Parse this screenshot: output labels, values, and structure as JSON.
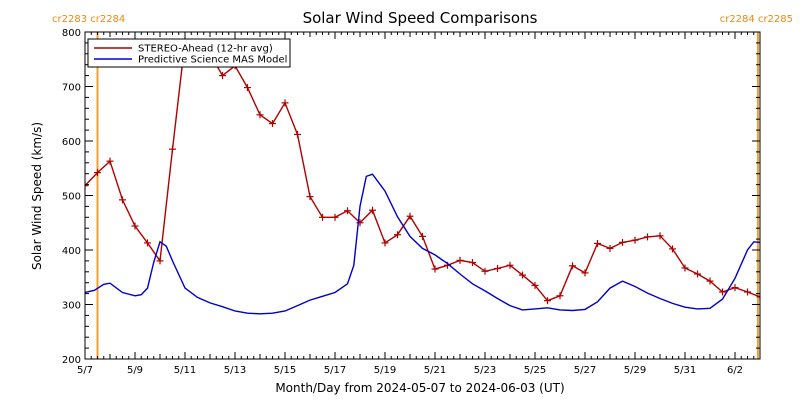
{
  "chart_data": {
    "type": "line",
    "title": "Solar Wind Speed Comparisons",
    "xlabel": "Month/Day from 2024-05-07 to 2024-06-03 (UT)",
    "ylabel": "Solar Wind Speed (km/s)",
    "xlim": [
      "2024-05-07",
      "2024-06-03"
    ],
    "ylim": [
      200,
      800
    ],
    "y_ticks": [
      200,
      300,
      400,
      500,
      600,
      700,
      800
    ],
    "x_ticks": [
      {
        "date": "2024-05-07",
        "label": "5/7"
      },
      {
        "date": "2024-05-09",
        "label": "5/9"
      },
      {
        "date": "2024-05-11",
        "label": "5/11"
      },
      {
        "date": "2024-05-13",
        "label": "5/13"
      },
      {
        "date": "2024-05-15",
        "label": "5/15"
      },
      {
        "date": "2024-05-17",
        "label": "5/17"
      },
      {
        "date": "2024-05-19",
        "label": "5/19"
      },
      {
        "date": "2024-05-21",
        "label": "5/21"
      },
      {
        "date": "2024-05-23",
        "label": "5/23"
      },
      {
        "date": "2024-05-25",
        "label": "5/25"
      },
      {
        "date": "2024-05-27",
        "label": "5/27"
      },
      {
        "date": "2024-05-29",
        "label": "5/29"
      },
      {
        "date": "2024-05-31",
        "label": "5/31"
      },
      {
        "date": "2024-06-02",
        "label": "6/2"
      }
    ],
    "carrington_left": "cr2283 cr2284",
    "carrington_right": "cr2284 cr2285",
    "carrington_markers": [
      "2024-05-07 12:00",
      "2024-06-02 22:00"
    ],
    "legend_position": "top-left",
    "grid": false,
    "series": [
      {
        "name": "STEREO-Ahead (12-hr avg)",
        "color": "#b00000",
        "marker": "plus",
        "points": [
          [
            "2024-05-07 00:00",
            518
          ],
          [
            "2024-05-07 12:00",
            542
          ],
          [
            "2024-05-08 00:00",
            563
          ],
          [
            "2024-05-08 12:00",
            492
          ],
          [
            "2024-05-09 00:00",
            444
          ],
          [
            "2024-05-09 12:00",
            413
          ],
          [
            "2024-05-10 00:00",
            380
          ],
          [
            "2024-05-10 12:00",
            585
          ],
          [
            "2024-05-11 00:00",
            782
          ],
          [
            "2024-05-11 12:00",
            765
          ],
          [
            "2024-05-12 00:00",
            760
          ],
          [
            "2024-05-12 12:00",
            720
          ],
          [
            "2024-05-13 00:00",
            738
          ],
          [
            "2024-05-13 12:00",
            698
          ],
          [
            "2024-05-14 00:00",
            648
          ],
          [
            "2024-05-14 12:00",
            632
          ],
          [
            "2024-05-15 00:00",
            670
          ],
          [
            "2024-05-15 12:00",
            612
          ],
          [
            "2024-05-16 00:00",
            498
          ],
          [
            "2024-05-16 12:00",
            460
          ],
          [
            "2024-05-17 00:00",
            460
          ],
          [
            "2024-05-17 12:00",
            472
          ],
          [
            "2024-05-18 00:00",
            450
          ],
          [
            "2024-05-18 12:00",
            473
          ],
          [
            "2024-05-19 00:00",
            413
          ],
          [
            "2024-05-19 12:00",
            428
          ],
          [
            "2024-05-20 00:00",
            462
          ],
          [
            "2024-05-20 12:00",
            425
          ],
          [
            "2024-05-21 00:00",
            365
          ],
          [
            "2024-05-21 12:00",
            372
          ],
          [
            "2024-05-22 00:00",
            381
          ],
          [
            "2024-05-22 12:00",
            377
          ],
          [
            "2024-05-23 00:00",
            361
          ],
          [
            "2024-05-23 12:00",
            366
          ],
          [
            "2024-05-24 00:00",
            372
          ],
          [
            "2024-05-24 12:00",
            354
          ],
          [
            "2024-05-25 00:00",
            335
          ],
          [
            "2024-05-25 12:00",
            307
          ],
          [
            "2024-05-26 00:00",
            316
          ],
          [
            "2024-05-26 12:00",
            371
          ],
          [
            "2024-05-27 00:00",
            358
          ],
          [
            "2024-05-27 12:00",
            412
          ],
          [
            "2024-05-28 00:00",
            403
          ],
          [
            "2024-05-28 12:00",
            414
          ],
          [
            "2024-05-29 00:00",
            418
          ],
          [
            "2024-05-29 12:00",
            424
          ],
          [
            "2024-05-30 00:00",
            426
          ],
          [
            "2024-05-30 12:00",
            402
          ],
          [
            "2024-05-31 00:00",
            367
          ],
          [
            "2024-05-31 12:00",
            356
          ],
          [
            "2024-06-01 00:00",
            343
          ],
          [
            "2024-06-01 12:00",
            323
          ],
          [
            "2024-06-02 00:00",
            331
          ],
          [
            "2024-06-02 12:00",
            323
          ],
          [
            "2024-06-03 00:00",
            314
          ],
          [
            "2024-06-03 12:00",
            319
          ]
        ]
      },
      {
        "name": "Predictive Science MAS Model",
        "color": "#0000cc",
        "marker": "none",
        "points": [
          [
            "2024-05-07 00:00",
            322
          ],
          [
            "2024-05-07 09:00",
            326
          ],
          [
            "2024-05-07 18:00",
            337
          ],
          [
            "2024-05-08 00:00",
            339
          ],
          [
            "2024-05-08 12:00",
            322
          ],
          [
            "2024-05-09 00:00",
            316
          ],
          [
            "2024-05-09 06:00",
            318
          ],
          [
            "2024-05-09 12:00",
            330
          ],
          [
            "2024-05-09 18:00",
            378
          ],
          [
            "2024-05-10 00:00",
            415
          ],
          [
            "2024-05-10 06:00",
            407
          ],
          [
            "2024-05-10 12:00",
            380
          ],
          [
            "2024-05-11 00:00",
            330
          ],
          [
            "2024-05-11 12:00",
            313
          ],
          [
            "2024-05-12 00:00",
            303
          ],
          [
            "2024-05-12 12:00",
            296
          ],
          [
            "2024-05-13 00:00",
            288
          ],
          [
            "2024-05-13 12:00",
            284
          ],
          [
            "2024-05-14 00:00",
            283
          ],
          [
            "2024-05-14 12:00",
            284
          ],
          [
            "2024-05-15 00:00",
            288
          ],
          [
            "2024-05-15 12:00",
            298
          ],
          [
            "2024-05-16 00:00",
            308
          ],
          [
            "2024-05-16 12:00",
            315
          ],
          [
            "2024-05-17 00:00",
            322
          ],
          [
            "2024-05-17 12:00",
            338
          ],
          [
            "2024-05-17 18:00",
            372
          ],
          [
            "2024-05-18 00:00",
            480
          ],
          [
            "2024-05-18 06:00",
            535
          ],
          [
            "2024-05-18 12:00",
            539
          ],
          [
            "2024-05-19 00:00",
            508
          ],
          [
            "2024-05-19 12:00",
            461
          ],
          [
            "2024-05-20 00:00",
            425
          ],
          [
            "2024-05-20 12:00",
            403
          ],
          [
            "2024-05-21 00:00",
            391
          ],
          [
            "2024-05-21 12:00",
            375
          ],
          [
            "2024-05-22 00:00",
            356
          ],
          [
            "2024-05-22 12:00",
            338
          ],
          [
            "2024-05-23 00:00",
            325
          ],
          [
            "2024-05-23 12:00",
            311
          ],
          [
            "2024-05-24 00:00",
            298
          ],
          [
            "2024-05-24 12:00",
            290
          ],
          [
            "2024-05-25 00:00",
            292
          ],
          [
            "2024-05-25 12:00",
            294
          ],
          [
            "2024-05-26 00:00",
            290
          ],
          [
            "2024-05-26 12:00",
            289
          ],
          [
            "2024-05-27 00:00",
            291
          ],
          [
            "2024-05-27 12:00",
            305
          ],
          [
            "2024-05-28 00:00",
            330
          ],
          [
            "2024-05-28 12:00",
            343
          ],
          [
            "2024-05-29 00:00",
            333
          ],
          [
            "2024-05-29 12:00",
            321
          ],
          [
            "2024-05-30 00:00",
            311
          ],
          [
            "2024-05-30 12:00",
            302
          ],
          [
            "2024-05-31 00:00",
            295
          ],
          [
            "2024-05-31 12:00",
            292
          ],
          [
            "2024-06-01 00:00",
            293
          ],
          [
            "2024-06-01 12:00",
            310
          ],
          [
            "2024-06-02 00:00",
            348
          ],
          [
            "2024-06-02 12:00",
            400
          ],
          [
            "2024-06-02 18:00",
            415
          ],
          [
            "2024-06-03 00:00",
            414
          ],
          [
            "2024-06-03 12:00",
            383
          ],
          [
            "2024-06-04 00:00",
            352
          ]
        ]
      }
    ]
  }
}
